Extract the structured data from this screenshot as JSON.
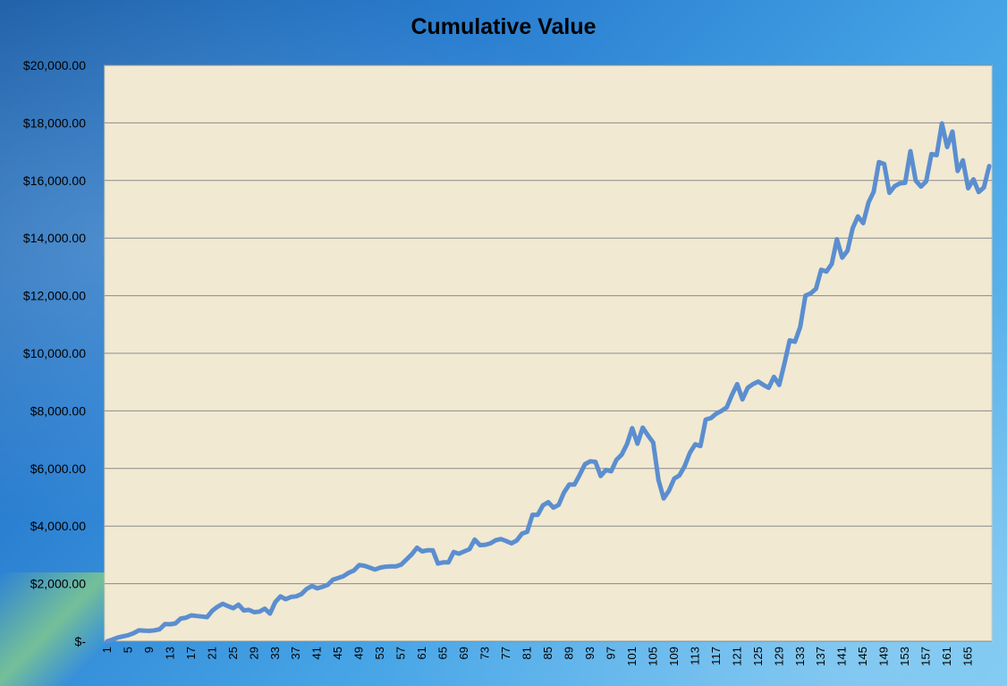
{
  "chart_data": {
    "type": "line",
    "title": "Cumulative Value",
    "xlabel": "",
    "ylabel": "",
    "ylim": [
      0,
      20000
    ],
    "yticks": [
      0,
      2000,
      4000,
      6000,
      8000,
      10000,
      12000,
      14000,
      16000,
      18000,
      20000
    ],
    "ytick_labels": [
      "$-",
      "$2,000.00",
      "$4,000.00",
      "$6,000.00",
      "$8,000.00",
      "$10,000.00",
      "$12,000.00",
      "$14,000.00",
      "$16,000.00",
      "$18,000.00",
      "$20,000.00"
    ],
    "xticks": [
      1,
      5,
      9,
      13,
      17,
      21,
      25,
      29,
      33,
      37,
      41,
      45,
      49,
      53,
      57,
      61,
      65,
      69,
      73,
      77,
      81,
      85,
      89,
      93,
      97,
      101,
      105,
      109,
      113,
      117,
      121,
      125,
      129,
      133,
      137,
      141,
      145,
      149,
      153,
      157,
      161,
      165
    ],
    "grid": true,
    "legend": "none",
    "line_color": "#5b8ed0",
    "plot_background": "#f1e9d2",
    "series": [
      {
        "values": [
          0,
          60,
          130,
          170,
          210,
          280,
          380,
          370,
          360,
          380,
          420,
          600,
          590,
          620,
          790,
          820,
          900,
          880,
          860,
          840,
          1060,
          1200,
          1300,
          1220,
          1150,
          1270,
          1070,
          1090,
          1010,
          1030,
          1130,
          960,
          1360,
          1560,
          1460,
          1540,
          1560,
          1640,
          1820,
          1920,
          1840,
          1890,
          1960,
          2140,
          2200,
          2260,
          2380,
          2460,
          2650,
          2620,
          2560,
          2490,
          2560,
          2590,
          2600,
          2600,
          2660,
          2840,
          3020,
          3250,
          3120,
          3160,
          3160,
          2700,
          2740,
          2740,
          3100,
          3040,
          3120,
          3200,
          3530,
          3340,
          3350,
          3400,
          3510,
          3550,
          3480,
          3400,
          3500,
          3740,
          3800,
          4390,
          4390,
          4720,
          4830,
          4640,
          4740,
          5160,
          5440,
          5440,
          5780,
          6150,
          6250,
          6230,
          5740,
          5950,
          5900,
          6300,
          6480,
          6840,
          7400,
          6860,
          7420,
          7150,
          6900,
          5600,
          4960,
          5230,
          5650,
          5760,
          6080,
          6550,
          6840,
          6780,
          7700,
          7750,
          7900,
          8000,
          8120,
          8550,
          8930,
          8400,
          8800,
          8930,
          9020,
          8900,
          8800,
          9180,
          8900,
          9640,
          10450,
          10400,
          10920,
          12000,
          12080,
          12240,
          12900,
          12840,
          13100,
          13960,
          13320,
          13560,
          14340,
          14750,
          14520,
          15230,
          15610,
          16640,
          16570,
          15570,
          15800,
          15900,
          15920,
          17020,
          16000,
          15790,
          15970,
          16920,
          16880,
          17980,
          17160,
          17700,
          16330,
          16700,
          15730,
          16040,
          15600,
          15760,
          16500
        ]
      }
    ]
  }
}
